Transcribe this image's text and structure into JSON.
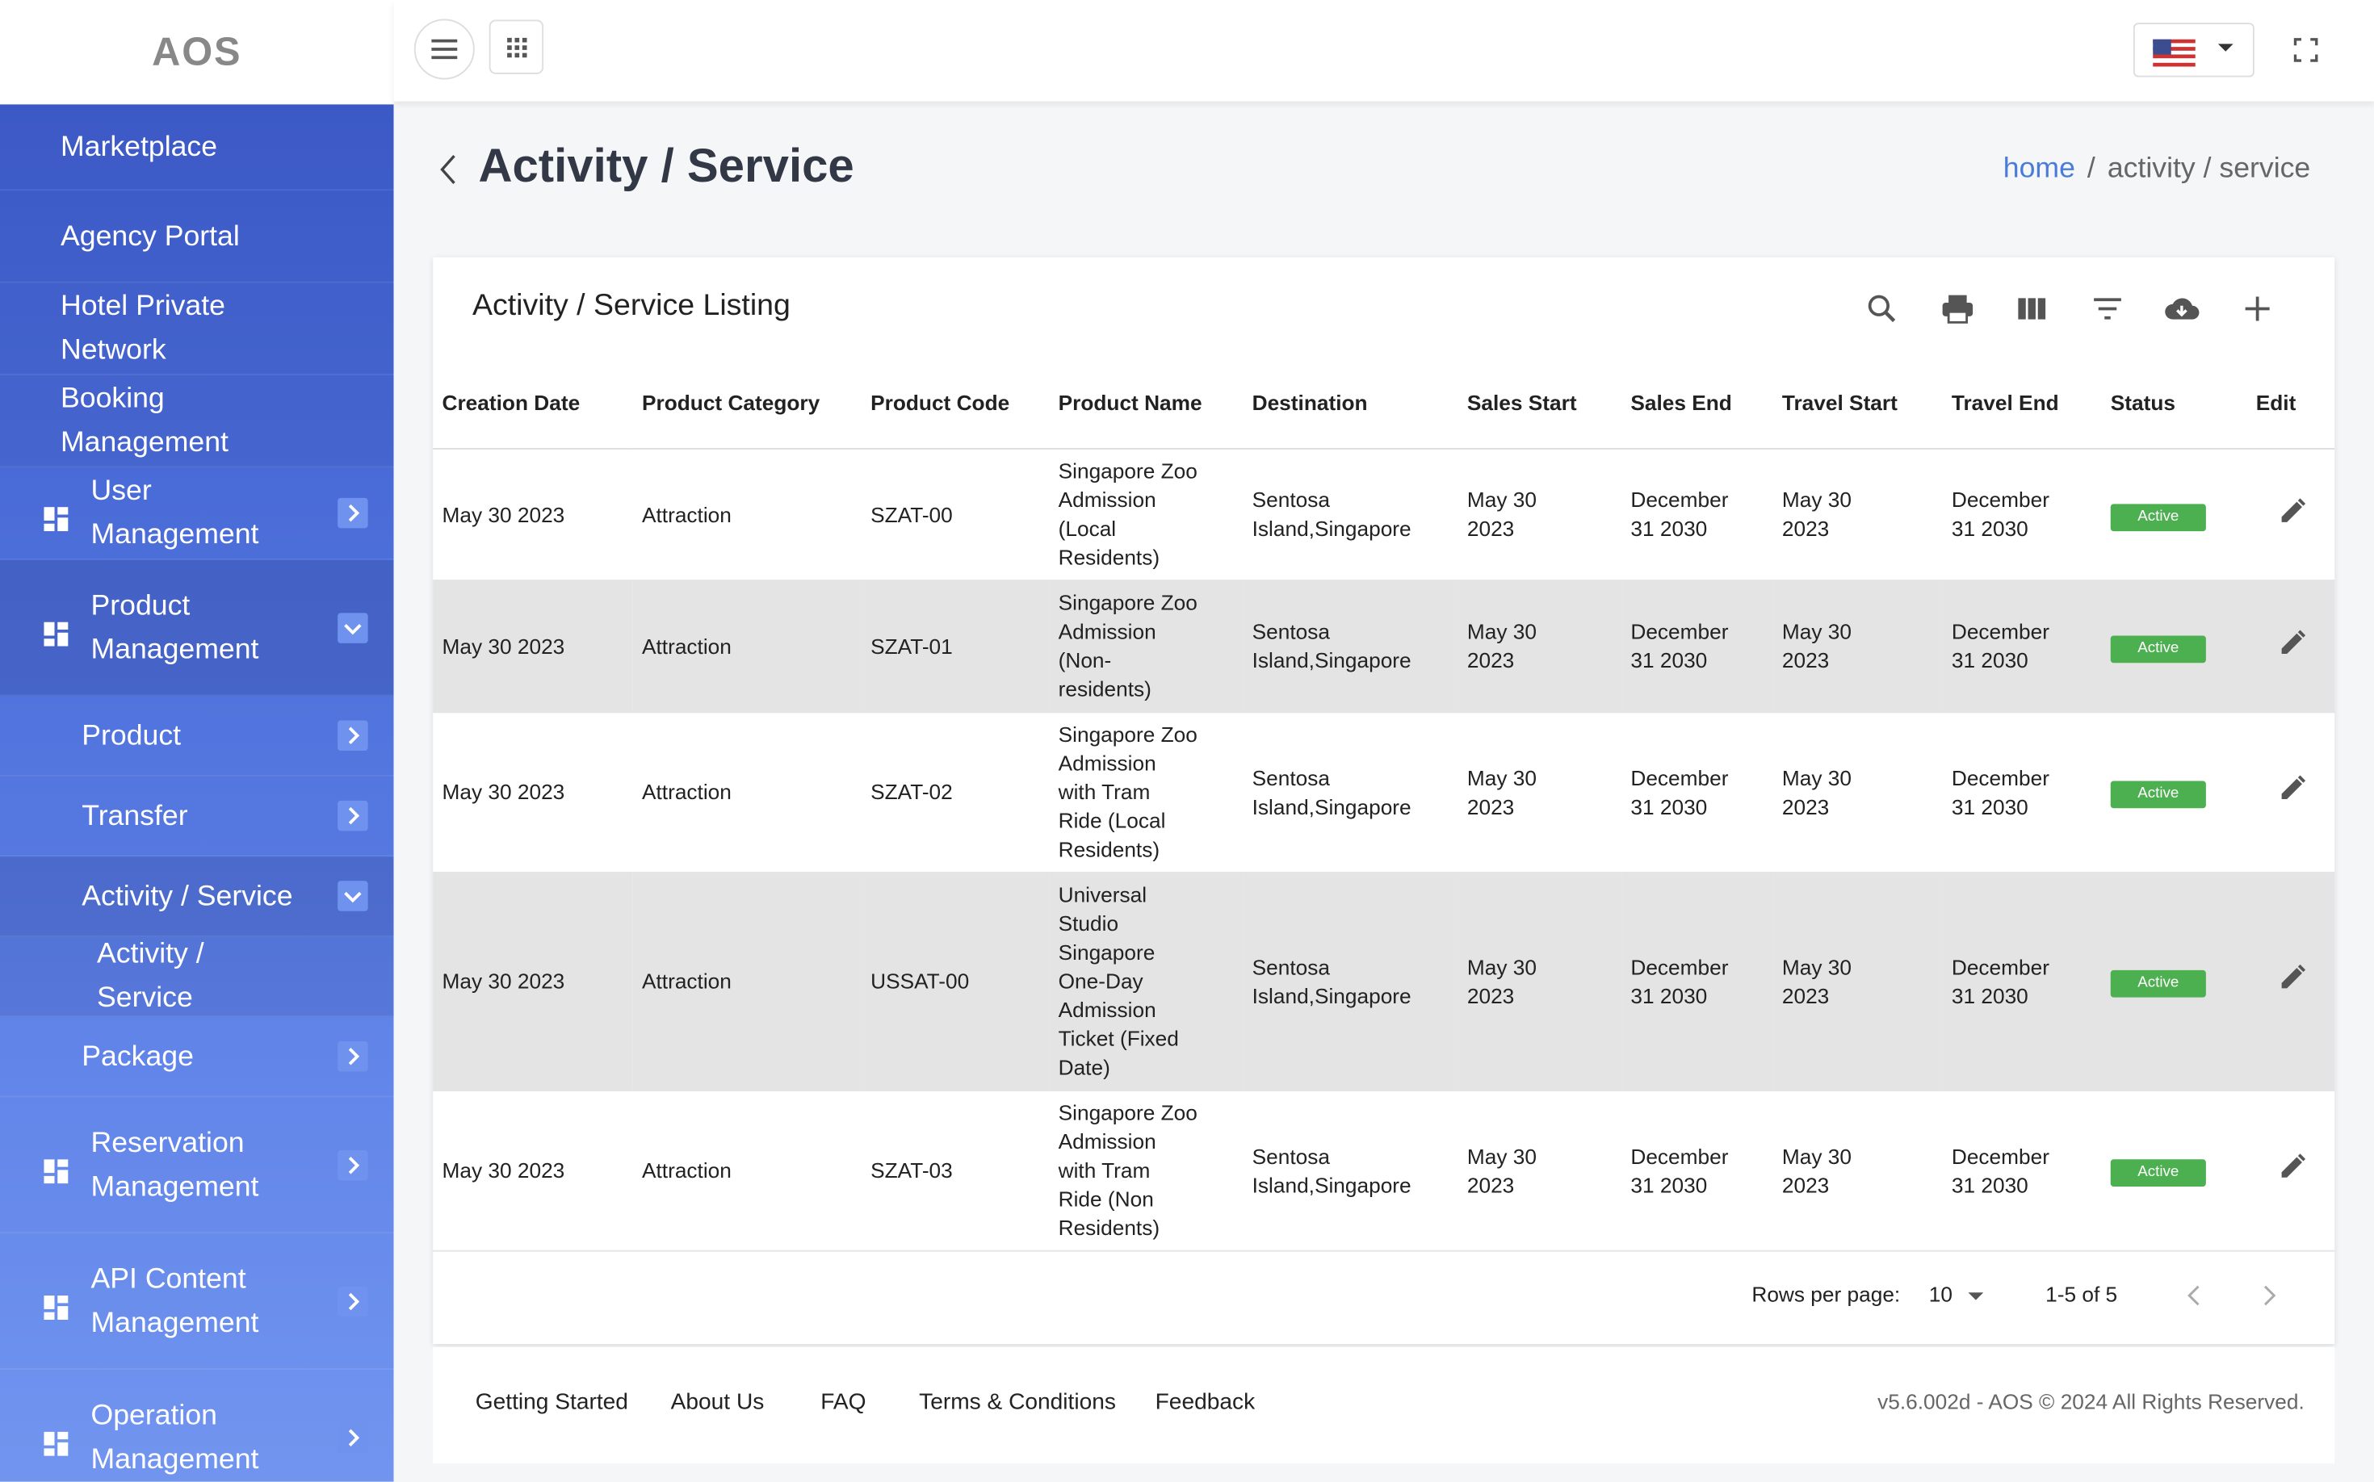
{
  "logo": "AOS",
  "sidebar": {
    "items": [
      {
        "label": "Marketplace"
      },
      {
        "label": "Agency Portal"
      },
      {
        "label": "Hotel Private Network"
      },
      {
        "label": "Booking Management"
      },
      {
        "label": "User Management"
      },
      {
        "label": "Product Management"
      },
      {
        "label": "Product"
      },
      {
        "label": "Transfer"
      },
      {
        "label": "Activity / Service"
      },
      {
        "label": "Activity / Service"
      },
      {
        "label": "Package"
      },
      {
        "label": "Reservation Management"
      },
      {
        "label": "API Content Management"
      },
      {
        "label": "Operation Management"
      }
    ]
  },
  "header": {
    "title": "Activity / Service",
    "breadcrumb": [
      "home",
      "/",
      "activity / service"
    ]
  },
  "card": {
    "title": "Activity / Service Listing",
    "columns": [
      "Creation Date",
      "Product Category",
      "Product Code",
      "Product Name",
      "Destination",
      "Sales Start",
      "Sales End",
      "Travel Start",
      "Travel End",
      "Status",
      "Edit"
    ],
    "rows": [
      [
        "May 30 2023",
        "Attraction",
        "SZAT-00",
        "Singapore Zoo Admission (Local Residents)",
        "Sentosa Island,Singapore",
        "May 30 2023",
        "December 31 2030",
        "May 30 2023",
        "December 31 2030",
        "Active"
      ],
      [
        "May 30 2023",
        "Attraction",
        "SZAT-01",
        "Singapore Zoo Admission (Non-residents)",
        "Sentosa Island,Singapore",
        "May 30 2023",
        "December 31 2030",
        "May 30 2023",
        "December 31 2030",
        "Active"
      ],
      [
        "May 30 2023",
        "Attraction",
        "SZAT-02",
        "Singapore Zoo Admission with Tram Ride (Local Residents)",
        "Sentosa Island,Singapore",
        "May 30 2023",
        "December 31 2030",
        "May 30 2023",
        "December 31 2030",
        "Active"
      ],
      [
        "May 30 2023",
        "Attraction",
        "USSAT-00",
        "Universal Studio Singapore One-Day Admission Ticket (Fixed Date)",
        "Sentosa Island,Singapore",
        "May 30 2023",
        "December 31 2030",
        "May 30 2023",
        "December 31 2030",
        "Active"
      ],
      [
        "May 30 2023",
        "Attraction",
        "SZAT-03",
        "Singapore Zoo Admission with Tram Ride (Non Residents)",
        "Sentosa Island,Singapore",
        "May 30 2023",
        "December 31 2030",
        "May 30 2023",
        "December 31 2030",
        "Active"
      ]
    ]
  },
  "pagination": {
    "rows_per_page_label": "Rows per page:",
    "rows_per_page": 10,
    "range": "1-5 of 5"
  },
  "footer": {
    "links": [
      "Getting Started",
      "About Us",
      "FAQ",
      "Terms & Conditions",
      "Feedback"
    ],
    "copyright": "v5.6.002d - AOS © 2024 All Rights Reserved."
  }
}
